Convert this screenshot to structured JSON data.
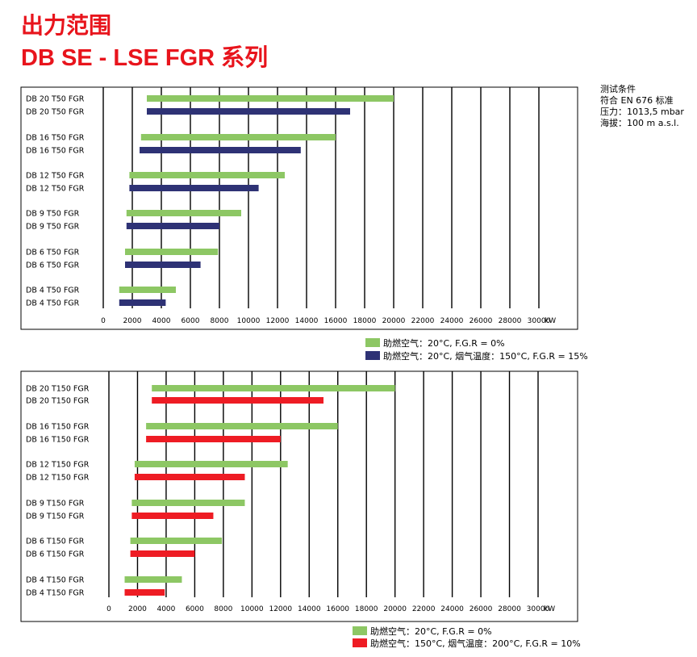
{
  "title_line1": "出力范围",
  "title_line2": "DB SE - LSE FGR 系列",
  "conditions": [
    "测试条件",
    "符合 EN 676 标准",
    "压力：1013,5 mbar",
    "海拔：100 m a.s.l."
  ],
  "colors": {
    "green": "#8dc764",
    "navy": "#2e3275",
    "red": "#ee1c24",
    "title": "#e8141c"
  },
  "chart_data": [
    {
      "type": "bar",
      "orientation": "horizontal-range",
      "x_ticks": [
        0,
        2000,
        4000,
        6000,
        8000,
        10000,
        12000,
        14000,
        16000,
        18000,
        20000,
        22000,
        24000,
        26000,
        28000,
        30000
      ],
      "x_unit": "kW",
      "xlim": [
        0,
        30000
      ],
      "grid": "vertical",
      "legend_position": "bottom-right",
      "legend": [
        "助燃空气：20°C,  F.G.R = 0%",
        "助燃空气：20°C, 烟气温度：150°C, F.G.R = 15%"
      ],
      "rows": [
        {
          "label": "DB 20  T50 FGR",
          "series": 0,
          "range": [
            3000,
            20000
          ]
        },
        {
          "label": "DB 20  T50 FGR",
          "series": 1,
          "range": [
            3000,
            17000
          ]
        },
        {
          "label": "DB 16  T50 FGR",
          "series": 0,
          "range": [
            2600,
            16000
          ]
        },
        {
          "label": "DB 16  T50 FGR",
          "series": 1,
          "range": [
            2500,
            13600
          ]
        },
        {
          "label": "DB 12  T50 FGR",
          "series": 0,
          "range": [
            1800,
            12500
          ]
        },
        {
          "label": "DB 12  T50 FGR",
          "series": 1,
          "range": [
            1800,
            10700
          ]
        },
        {
          "label": "DB 9  T50 FGR",
          "series": 0,
          "range": [
            1600,
            9500
          ]
        },
        {
          "label": "DB 9  T50 FGR",
          "series": 1,
          "range": [
            1600,
            8000
          ]
        },
        {
          "label": "DB 6  T50 FGR",
          "series": 0,
          "range": [
            1500,
            7900
          ]
        },
        {
          "label": "DB 6  T50 FGR",
          "series": 1,
          "range": [
            1500,
            6700
          ]
        },
        {
          "label": "DB 4  T50 FGR",
          "series": 0,
          "range": [
            1100,
            5000
          ]
        },
        {
          "label": "DB 4  T50 FGR",
          "series": 1,
          "range": [
            1100,
            4300
          ]
        }
      ]
    },
    {
      "type": "bar",
      "orientation": "horizontal-range",
      "x_ticks": [
        0,
        2000,
        4000,
        6000,
        8000,
        10000,
        12000,
        14000,
        16000,
        18000,
        20000,
        22000,
        24000,
        26000,
        28000,
        30000
      ],
      "x_unit": "kW",
      "xlim": [
        0,
        30000
      ],
      "grid": "vertical",
      "legend_position": "bottom-right",
      "legend": [
        "助燃空气：20°C,  F.G.R = 0%",
        "助燃空气：150°C, 烟气温度：200°C, F.G.R = 10%"
      ],
      "rows": [
        {
          "label": "DB 20  T150 FGR",
          "series": 0,
          "range": [
            3000,
            20000
          ]
        },
        {
          "label": "DB 20  T150 FGR",
          "series": 1,
          "range": [
            3000,
            15000
          ]
        },
        {
          "label": "DB 16  T150 FGR",
          "series": 0,
          "range": [
            2600,
            16000
          ]
        },
        {
          "label": "DB 16  T150 FGR",
          "series": 1,
          "range": [
            2600,
            12000
          ]
        },
        {
          "label": "DB 12  T150 FGR",
          "series": 0,
          "range": [
            1800,
            12500
          ]
        },
        {
          "label": "DB 12  T150 FGR",
          "series": 1,
          "range": [
            1800,
            9500
          ]
        },
        {
          "label": "DB 9  T150 FGR",
          "series": 0,
          "range": [
            1600,
            9500
          ]
        },
        {
          "label": "DB 9  T150 FGR",
          "series": 1,
          "range": [
            1600,
            7300
          ]
        },
        {
          "label": "DB 6  T150 FGR",
          "series": 0,
          "range": [
            1500,
            7900
          ]
        },
        {
          "label": "DB 6  T150 FGR",
          "series": 1,
          "range": [
            1500,
            6000
          ]
        },
        {
          "label": "DB 4  T150 FGR",
          "series": 0,
          "range": [
            1100,
            5100
          ]
        },
        {
          "label": "DB 4  T150 FGR",
          "series": 1,
          "range": [
            1100,
            3900
          ]
        }
      ]
    }
  ]
}
